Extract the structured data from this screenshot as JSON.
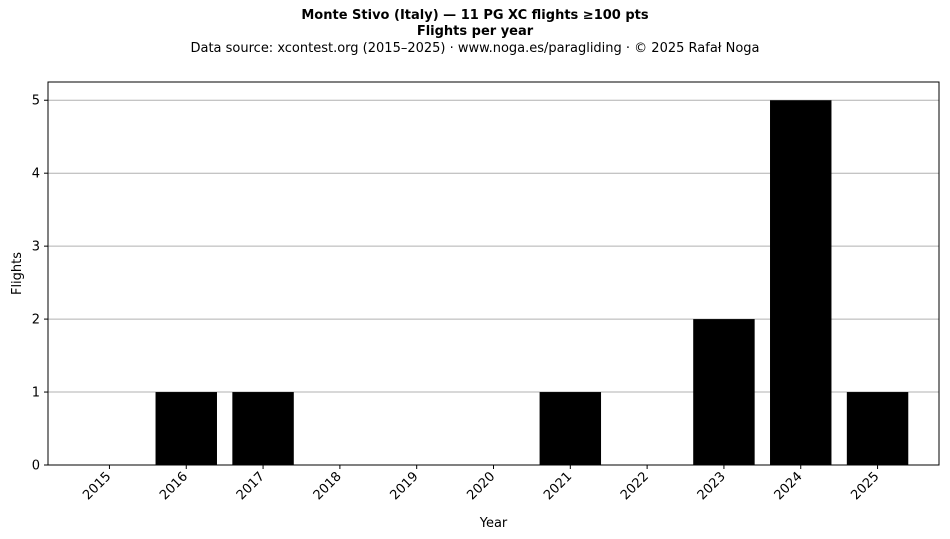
{
  "chart_data": {
    "type": "bar",
    "title": "Monte Stivo (Italy)  —  11 PG XC flights ≥100 pts",
    "subtitle": "Flights per year",
    "source_line": "Data source: xcontest.org (2015–2025)  ·  www.noga.es/paragliding  ·  © 2025 Rafał Noga",
    "xlabel": "Year",
    "ylabel": "Flights",
    "categories": [
      "2015",
      "2016",
      "2017",
      "2018",
      "2019",
      "2020",
      "2021",
      "2022",
      "2023",
      "2024",
      "2025"
    ],
    "values": [
      0,
      1,
      1,
      0,
      0,
      0,
      1,
      0,
      2,
      5,
      1
    ],
    "ylim": [
      0,
      5.25
    ],
    "yticks": [
      0,
      1,
      2,
      3,
      4,
      5
    ],
    "grid": "y-major",
    "bar_color": "#000000",
    "grid_color": "#b0b0b0"
  }
}
